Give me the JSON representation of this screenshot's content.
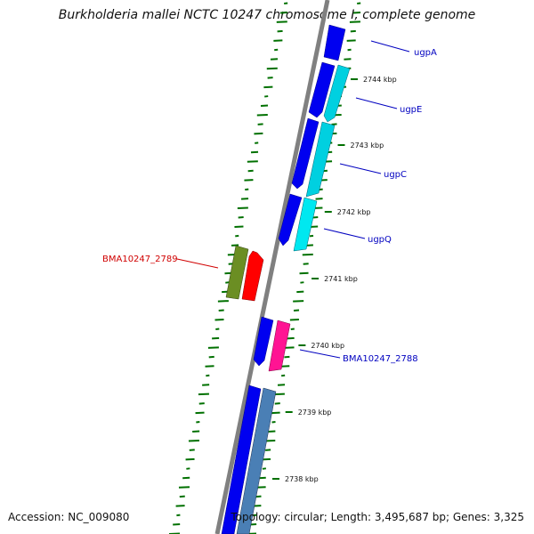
{
  "title": "Burkholderia mallei NCTC 10247 chromosome I, complete genome",
  "accession": "Accession: NC_009080",
  "topology": "Topology: circular; Length: 3,495,687 bp; Genes: 3,325",
  "colors": {
    "backbone": "#808080",
    "forward_gene": "#0000f0",
    "ugp_reverse_gene": "#00d0e0",
    "bma2788_reverse_gene": "#ff1493",
    "bottom_reverse_gene": "#4a7fb5",
    "bma2789_forward_gene": "#ff0000",
    "bma2789_reverse_gene": "#6b8e23",
    "gc_ticks": "#007000",
    "label_blue": "#0000c0",
    "label_red": "#d00000"
  },
  "scale_labels": [
    "2744 kbp",
    "2743 kbp",
    "2742 kbp",
    "2741 kbp",
    "2740 kbp",
    "2739 kbp",
    "2738 kbp"
  ],
  "gene_labels": [
    {
      "text": "ugpA",
      "color": "blue"
    },
    {
      "text": "ugpE",
      "color": "blue"
    },
    {
      "text": "ugpC",
      "color": "blue"
    },
    {
      "text": "ugpQ",
      "color": "blue"
    },
    {
      "text": "BMA10247_2788",
      "color": "blue"
    },
    {
      "text": "BMA10247_2789",
      "color": "red"
    }
  ]
}
